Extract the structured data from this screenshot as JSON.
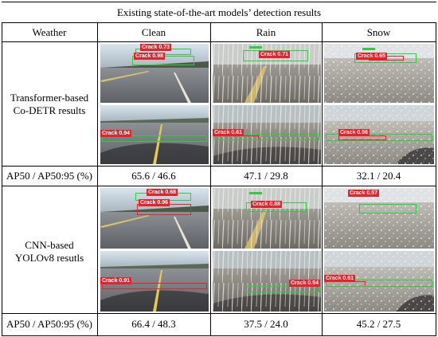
{
  "table": {
    "title": "Existing state-of-the-art models’ detection results",
    "header": {
      "weather": "Weather",
      "clean": "Clean",
      "rain": "Rain",
      "snow": "Snow"
    },
    "rows": [
      {
        "label_line1": "Transformer-based",
        "label_line2": "Co-DETR results",
        "images": {
          "clean_top": [
            "Crack 0.73",
            "Crack 0.98"
          ],
          "rain_top": [
            "Crack 0.71"
          ],
          "snow_top": [
            "Crack 0.65"
          ],
          "clean_bottom": [
            "Crack 0.94"
          ],
          "rain_bottom": [
            "Crack 0.61"
          ],
          "snow_bottom": [
            "Crack 0.56"
          ]
        },
        "ap_label": "AP50 / AP50:95  (%)",
        "ap_values": {
          "clean": "65.6 / 46.6",
          "rain": "47.1 / 29.8",
          "snow": "32.1 / 20.4"
        }
      },
      {
        "label_line1": "CNN-based",
        "label_line2": "YOLOv8 resutls",
        "images": {
          "clean_top": [
            "Crack 0.68",
            "Crack 0.96"
          ],
          "rain_top": [
            "Crack 0.88"
          ],
          "snow_top": [
            "Crack 0.57"
          ],
          "clean_bottom": [
            "Crack 0.91"
          ],
          "rain_bottom": [
            "Crack 0.54"
          ],
          "snow_bottom": [
            "Crack 0.61"
          ]
        },
        "ap_label": "AP50 / AP50:95  (%)",
        "ap_values": {
          "clean": "66.4 / 48.3",
          "rain": "37.5 / 24.0",
          "snow": "45.2 / 27.5"
        }
      }
    ]
  },
  "colors": {
    "label_red": "#e8222b",
    "box_green": "#2ecc40"
  }
}
